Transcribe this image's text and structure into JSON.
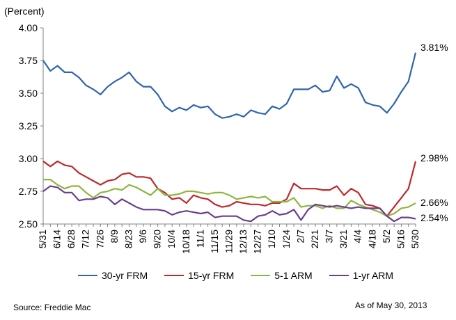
{
  "chart_data": {
    "type": "line",
    "ylabel": "(Percent)",
    "ylim": [
      2.5,
      4.0
    ],
    "yticks": [
      "4.00",
      "3.75",
      "3.50",
      "3.25",
      "3.00",
      "2.75",
      "2.50"
    ],
    "x": [
      "5/31",
      "6/7",
      "6/14",
      "6/21",
      "6/28",
      "7/5",
      "7/12",
      "7/19",
      "7/26",
      "8/2",
      "8/9",
      "8/16",
      "8/23",
      "8/30",
      "9/6",
      "9/13",
      "9/20",
      "9/27",
      "10/4",
      "10/11",
      "10/18",
      "10/25",
      "11/1",
      "11/8",
      "11/15",
      "11/22",
      "11/29",
      "12/6",
      "12/13",
      "12/20",
      "12/27",
      "1/3",
      "1/10",
      "1/17",
      "1/24",
      "1/31",
      "2/7",
      "2/14",
      "2/21",
      "2/28",
      "3/7",
      "3/14",
      "3/21",
      "3/28",
      "4/4",
      "4/11",
      "4/18",
      "4/25",
      "5/2",
      "5/9",
      "5/16",
      "5/23",
      "5/30"
    ],
    "xtick_labels": [
      "5/31",
      "6/14",
      "6/28",
      "7/12",
      "7/26",
      "8/9",
      "8/23",
      "9/6",
      "9/20",
      "10/4",
      "10/18",
      "11/1",
      "11/15",
      "11/29",
      "12/13",
      "12/27",
      "1/10",
      "1/24",
      "2/7",
      "2/21",
      "3/7",
      "3/21",
      "4/4",
      "4/18",
      "5/2",
      "5/16",
      "5/30"
    ],
    "series": [
      {
        "name": "30-yr FRM",
        "color": "#2e64b0",
        "values": [
          3.75,
          3.67,
          3.71,
          3.66,
          3.66,
          3.62,
          3.56,
          3.53,
          3.49,
          3.55,
          3.59,
          3.62,
          3.66,
          3.59,
          3.55,
          3.55,
          3.49,
          3.4,
          3.36,
          3.39,
          3.37,
          3.41,
          3.39,
          3.4,
          3.34,
          3.31,
          3.32,
          3.34,
          3.32,
          3.37,
          3.35,
          3.34,
          3.4,
          3.38,
          3.42,
          3.53,
          3.53,
          3.53,
          3.56,
          3.51,
          3.52,
          3.63,
          3.54,
          3.57,
          3.54,
          3.43,
          3.41,
          3.4,
          3.35,
          3.42,
          3.51,
          3.59,
          3.81
        ],
        "end_label": "3.81%"
      },
      {
        "name": "15-yr FRM",
        "color": "#c0282d",
        "values": [
          2.98,
          2.94,
          2.98,
          2.95,
          2.94,
          2.89,
          2.86,
          2.83,
          2.8,
          2.83,
          2.84,
          2.88,
          2.89,
          2.86,
          2.86,
          2.85,
          2.77,
          2.74,
          2.69,
          2.7,
          2.66,
          2.72,
          2.7,
          2.69,
          2.65,
          2.63,
          2.64,
          2.67,
          2.66,
          2.65,
          2.65,
          2.64,
          2.66,
          2.66,
          2.69,
          2.81,
          2.77,
          2.77,
          2.77,
          2.76,
          2.76,
          2.79,
          2.72,
          2.77,
          2.74,
          2.65,
          2.64,
          2.62,
          2.56,
          2.63,
          2.7,
          2.77,
          2.98
        ],
        "end_label": "2.98%"
      },
      {
        "name": "5-1 ARM",
        "color": "#8db63c",
        "values": [
          2.84,
          2.84,
          2.8,
          2.77,
          2.79,
          2.79,
          2.74,
          2.7,
          2.74,
          2.75,
          2.77,
          2.76,
          2.8,
          2.78,
          2.75,
          2.72,
          2.77,
          2.72,
          2.72,
          2.73,
          2.75,
          2.75,
          2.74,
          2.73,
          2.74,
          2.74,
          2.72,
          2.69,
          2.7,
          2.71,
          2.7,
          2.71,
          2.67,
          2.67,
          2.67,
          2.7,
          2.63,
          2.64,
          2.64,
          2.62,
          2.64,
          2.62,
          2.62,
          2.68,
          2.65,
          2.63,
          2.61,
          2.59,
          2.56,
          2.58,
          2.62,
          2.63,
          2.66
        ],
        "end_label": "2.66%"
      },
      {
        "name": "1-yr ARM",
        "color": "#6a3d8f",
        "values": [
          2.75,
          2.79,
          2.78,
          2.74,
          2.74,
          2.68,
          2.69,
          2.69,
          2.71,
          2.7,
          2.65,
          2.69,
          2.66,
          2.63,
          2.61,
          2.61,
          2.61,
          2.6,
          2.57,
          2.59,
          2.6,
          2.59,
          2.58,
          2.59,
          2.55,
          2.56,
          2.56,
          2.56,
          2.53,
          2.52,
          2.56,
          2.57,
          2.6,
          2.57,
          2.58,
          2.61,
          2.53,
          2.61,
          2.65,
          2.64,
          2.63,
          2.64,
          2.63,
          2.62,
          2.63,
          2.62,
          2.62,
          2.62,
          2.56,
          2.52,
          2.55,
          2.55,
          2.54
        ],
        "end_label": "2.54%"
      }
    ],
    "legend_position": "bottom",
    "grid": false
  },
  "footer": {
    "source": "Source: Freddie Mac",
    "as_of": "As of May 30, 2013"
  }
}
